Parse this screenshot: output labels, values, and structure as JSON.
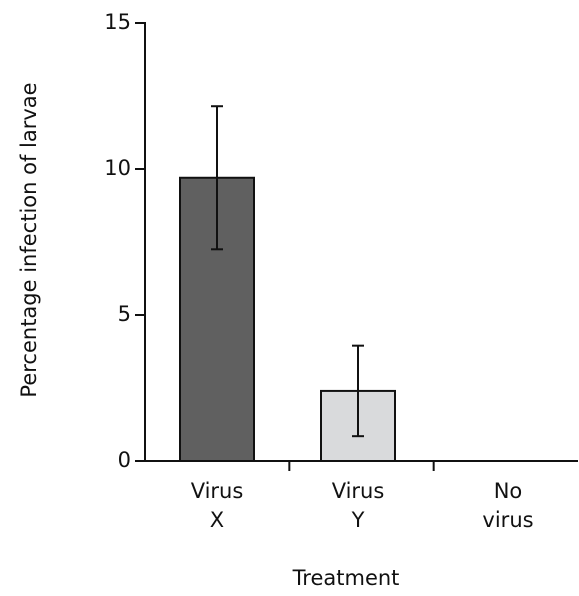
{
  "chart_data": {
    "type": "bar",
    "x_label": "Treatment",
    "y_label": "Percentage infection of larvae",
    "categories": [
      "Virus X",
      "Virus Y",
      "No virus"
    ],
    "values": [
      9.7,
      2.4,
      0
    ],
    "errors": [
      2.45,
      1.55,
      0
    ],
    "colors": [
      "#606060",
      "#d9dadc",
      "#d9dadc"
    ],
    "ylim": [
      0,
      15
    ],
    "yticks": [
      0,
      5,
      10,
      15
    ],
    "grid": false
  }
}
